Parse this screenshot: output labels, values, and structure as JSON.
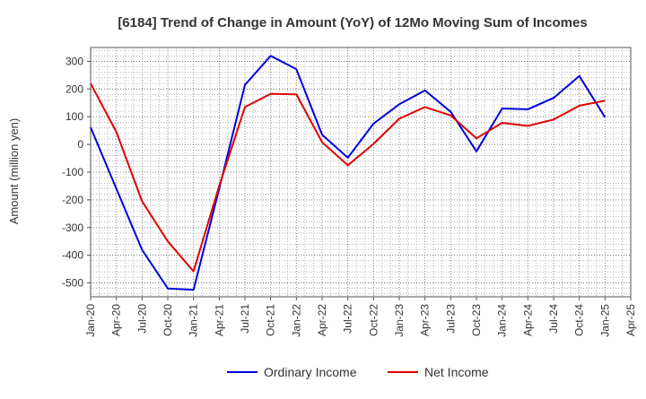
{
  "chart_data": {
    "type": "line",
    "title": "[6184]  Trend of Change in Amount (YoY) of 12Mo Moving Sum of Incomes",
    "xlabel": "",
    "ylabel": "Amount (million yen)",
    "ylim": [
      -550,
      350
    ],
    "yticks": [
      300,
      200,
      100,
      0,
      -100,
      -200,
      -300,
      -400,
      -500
    ],
    "ytick_labels": [
      "300",
      "200",
      "100",
      "0",
      "-100",
      "-200",
      "-300",
      "-400",
      "-500"
    ],
    "categories": [
      "Jan-20",
      "Apr-20",
      "Jul-20",
      "Oct-20",
      "Jan-21",
      "Apr-21",
      "Jul-21",
      "Oct-21",
      "Jan-22",
      "Apr-22",
      "Jul-22",
      "Oct-22",
      "Jan-23",
      "Apr-23",
      "Jul-23",
      "Oct-23",
      "Jan-24",
      "Apr-24",
      "Jul-24",
      "Oct-24",
      "Jan-25",
      "Apr-25"
    ],
    "grid": true,
    "legend_position": "bottom",
    "series": [
      {
        "name": "Ordinary Income",
        "color": "#0000dd",
        "values": [
          62,
          -160,
          -380,
          -520,
          -525,
          -160,
          215,
          320,
          272,
          35,
          -48,
          75,
          145,
          195,
          118,
          -25,
          130,
          127,
          168,
          247,
          98,
          null
        ]
      },
      {
        "name": "Net Income",
        "color": "#e00000",
        "values": [
          220,
          45,
          -205,
          -350,
          -458,
          -150,
          135,
          183,
          181,
          8,
          -75,
          2,
          93,
          135,
          105,
          22,
          78,
          67,
          90,
          140,
          158,
          null
        ]
      }
    ]
  }
}
